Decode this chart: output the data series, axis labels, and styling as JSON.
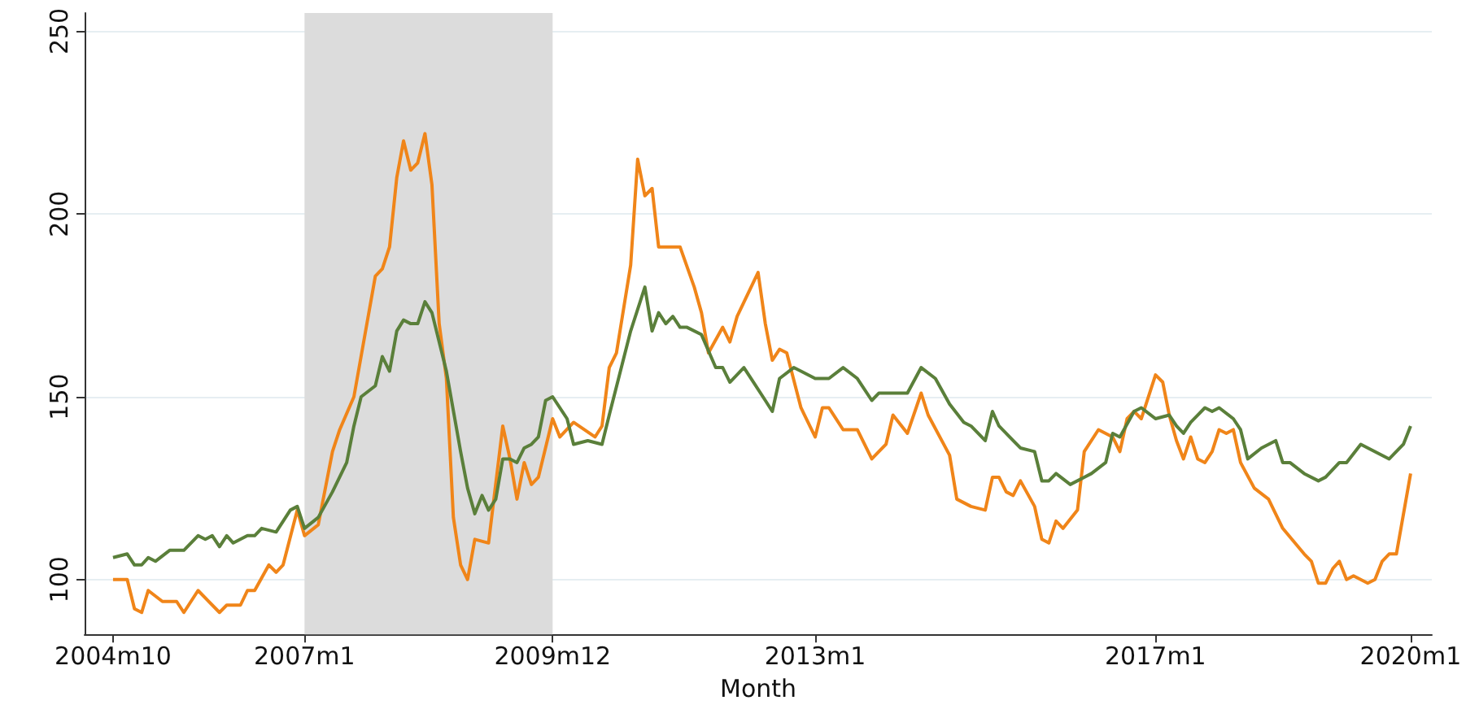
{
  "chart_data": {
    "type": "line",
    "xlabel": "Month",
    "xlim": [
      "2004-06",
      "2020-04"
    ],
    "ylim": [
      85,
      255
    ],
    "xticks": [
      {
        "value": "2004-10",
        "label": "2004m10"
      },
      {
        "value": "2007-01",
        "label": "2007m1"
      },
      {
        "value": "2009-12",
        "label": "2009m12"
      },
      {
        "value": "2013-01",
        "label": "2013m1"
      },
      {
        "value": "2017-01",
        "label": "2017m1"
      },
      {
        "value": "2020-01",
        "label": "2020m1"
      }
    ],
    "yticks": [
      100,
      150,
      200,
      250
    ],
    "grid": "y",
    "marker": "none",
    "line_style": "solid",
    "bands": [
      {
        "axis": "x",
        "from": "2007-01",
        "to": "2009-12",
        "color": "#dcdcdc"
      }
    ],
    "series": [
      {
        "color": "#f08519",
        "x": [
          "2004-10",
          "2004-12",
          "2005-01",
          "2005-02",
          "2005-03",
          "2005-05",
          "2005-07",
          "2005-08",
          "2005-10",
          "2006-01",
          "2006-02",
          "2006-04",
          "2006-05",
          "2006-06",
          "2006-08",
          "2006-09",
          "2006-10",
          "2006-12",
          "2007-01",
          "2007-03",
          "2007-05",
          "2007-06",
          "2007-08",
          "2007-11",
          "2007-12",
          "2008-01",
          "2008-02",
          "2008-03",
          "2008-04",
          "2008-05",
          "2008-06",
          "2008-07",
          "2008-08",
          "2008-09",
          "2008-10",
          "2008-11",
          "2008-12",
          "2009-01",
          "2009-03",
          "2009-05",
          "2009-06",
          "2009-07",
          "2009-08",
          "2009-09",
          "2009-10",
          "2009-12",
          "2010-01",
          "2010-03",
          "2010-06",
          "2010-07",
          "2010-08",
          "2010-09",
          "2010-11",
          "2010-12",
          "2011-01",
          "2011-02",
          "2011-03",
          "2011-06",
          "2011-08",
          "2011-09",
          "2011-10",
          "2011-12",
          "2012-01",
          "2012-02",
          "2012-05",
          "2012-06",
          "2012-07",
          "2012-08",
          "2012-09",
          "2012-11",
          "2013-01",
          "2013-02",
          "2013-03",
          "2013-05",
          "2013-07",
          "2013-09",
          "2013-11",
          "2013-12",
          "2014-02",
          "2014-04",
          "2014-05",
          "2014-08",
          "2014-09",
          "2014-11",
          "2015-01",
          "2015-02",
          "2015-03",
          "2015-04",
          "2015-05",
          "2015-06",
          "2015-08",
          "2015-09",
          "2015-10",
          "2015-11",
          "2015-12",
          "2016-02",
          "2016-03",
          "2016-05",
          "2016-07",
          "2016-08",
          "2016-09",
          "2016-10",
          "2016-11",
          "2017-01",
          "2017-02",
          "2017-03",
          "2017-04",
          "2017-05",
          "2017-06",
          "2017-07",
          "2017-08",
          "2017-09",
          "2017-10",
          "2017-11",
          "2017-12",
          "2018-01",
          "2018-03",
          "2018-05",
          "2018-07",
          "2018-10",
          "2018-11",
          "2018-12",
          "2019-01",
          "2019-02",
          "2019-03",
          "2019-04",
          "2019-05",
          "2019-07",
          "2019-08",
          "2019-09",
          "2019-10",
          "2019-11",
          "2020-01"
        ],
        "values": [
          100,
          100,
          92,
          91,
          97,
          94,
          94,
          91,
          97,
          91,
          93,
          93,
          97,
          97,
          104,
          102,
          104,
          119,
          112,
          115,
          135,
          141,
          150,
          183,
          185,
          191,
          210,
          220,
          212,
          214,
          222,
          208,
          170,
          155,
          117,
          104,
          100,
          111,
          110,
          142,
          133,
          122,
          132,
          126,
          128,
          144,
          139,
          143,
          139,
          142,
          158,
          162,
          186,
          215,
          205,
          207,
          191,
          191,
          180,
          173,
          162,
          169,
          165,
          172,
          184,
          170,
          160,
          163,
          162,
          147,
          139,
          147,
          147,
          141,
          141,
          133,
          137,
          145,
          140,
          151,
          145,
          134,
          122,
          120,
          119,
          128,
          128,
          124,
          123,
          127,
          120,
          111,
          110,
          116,
          114,
          119,
          135,
          141,
          139,
          135,
          144,
          146,
          144,
          156,
          154,
          145,
          138,
          133,
          139,
          133,
          132,
          135,
          141,
          140,
          141,
          132,
          125,
          122,
          114,
          107,
          105,
          99,
          99,
          103,
          105,
          100,
          101,
          99,
          100,
          105,
          107,
          107,
          129
        ]
      },
      {
        "color": "#5a7f3a",
        "x": [
          "2004-10",
          "2004-12",
          "2005-01",
          "2005-02",
          "2005-03",
          "2005-04",
          "2005-06",
          "2005-08",
          "2005-10",
          "2005-11",
          "2005-12",
          "2006-01",
          "2006-02",
          "2006-03",
          "2006-05",
          "2006-06",
          "2006-07",
          "2006-09",
          "2006-11",
          "2006-12",
          "2007-01",
          "2007-03",
          "2007-05",
          "2007-07",
          "2007-08",
          "2007-09",
          "2007-11",
          "2007-12",
          "2008-01",
          "2008-02",
          "2008-03",
          "2008-04",
          "2008-05",
          "2008-06",
          "2008-07",
          "2008-09",
          "2008-11",
          "2008-12",
          "2009-01",
          "2009-02",
          "2009-03",
          "2009-04",
          "2009-05",
          "2009-06",
          "2009-07",
          "2009-08",
          "2009-09",
          "2009-10",
          "2009-11",
          "2009-12",
          "2010-02",
          "2010-03",
          "2010-05",
          "2010-07",
          "2010-08",
          "2010-11",
          "2011-01",
          "2011-02",
          "2011-03",
          "2011-04",
          "2011-05",
          "2011-06",
          "2011-07",
          "2011-09",
          "2011-11",
          "2011-12",
          "2012-01",
          "2012-03",
          "2012-04",
          "2012-06",
          "2012-07",
          "2012-08",
          "2012-10",
          "2012-11",
          "2013-01",
          "2013-03",
          "2013-05",
          "2013-07",
          "2013-09",
          "2013-10",
          "2014-02",
          "2014-04",
          "2014-06",
          "2014-08",
          "2014-10",
          "2014-11",
          "2015-01",
          "2015-02",
          "2015-03",
          "2015-05",
          "2015-06",
          "2015-08",
          "2015-09",
          "2015-10",
          "2015-11",
          "2016-01",
          "2016-03",
          "2016-04",
          "2016-06",
          "2016-07",
          "2016-08",
          "2016-10",
          "2016-11",
          "2017-01",
          "2017-03",
          "2017-04",
          "2017-05",
          "2017-06",
          "2017-08",
          "2017-09",
          "2017-10",
          "2017-12",
          "2018-01",
          "2018-02",
          "2018-04",
          "2018-06",
          "2018-07",
          "2018-08",
          "2018-10",
          "2018-12",
          "2019-01",
          "2019-03",
          "2019-04",
          "2019-06",
          "2019-08",
          "2019-10",
          "2019-12",
          "2020-01"
        ],
        "values": [
          106,
          107,
          104,
          104,
          106,
          105,
          108,
          108,
          112,
          111,
          112,
          109,
          112,
          110,
          112,
          112,
          114,
          113,
          119,
          120,
          114,
          117,
          124,
          132,
          142,
          150,
          153,
          161,
          157,
          168,
          171,
          170,
          170,
          176,
          173,
          157,
          135,
          125,
          118,
          123,
          119,
          122,
          133,
          133,
          132,
          136,
          137,
          139,
          149,
          150,
          144,
          137,
          138,
          137,
          145,
          168,
          180,
          168,
          173,
          170,
          172,
          169,
          169,
          167,
          158,
          158,
          154,
          158,
          155,
          149,
          146,
          155,
          158,
          157,
          155,
          155,
          158,
          155,
          149,
          151,
          151,
          158,
          155,
          148,
          143,
          142,
          138,
          146,
          142,
          138,
          136,
          135,
          127,
          127,
          129,
          126,
          128,
          129,
          132,
          140,
          139,
          146,
          147,
          144,
          145,
          142,
          140,
          143,
          147,
          146,
          147,
          144,
          141,
          133,
          136,
          138,
          132,
          132,
          129,
          127,
          128,
          132,
          132,
          137,
          135,
          133,
          137,
          142
        ]
      }
    ]
  }
}
